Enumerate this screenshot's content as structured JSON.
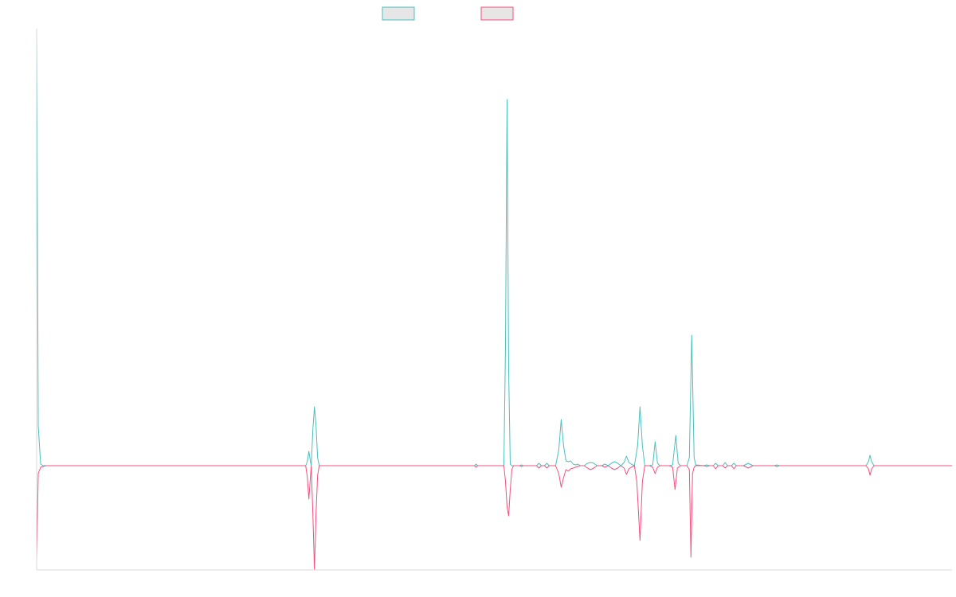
{
  "chart_data": {
    "type": "line",
    "title": "",
    "xlabel": "",
    "ylabel": "",
    "xlim": [
      0,
      1150
    ],
    "ylim": [
      -131,
      549
    ],
    "baseline": 0,
    "grid": false,
    "legend": {
      "placement": "top-center",
      "show_text": false
    },
    "series": [
      {
        "color": "#4bbfbd",
        "legend_fill": "#e6e6e6",
        "points": [
          [
            0,
            549
          ],
          [
            2,
            50
          ],
          [
            5,
            2
          ],
          [
            8,
            0
          ],
          [
            338,
            0
          ],
          [
            340,
            5
          ],
          [
            342,
            18
          ],
          [
            344,
            5
          ],
          [
            345,
            0
          ],
          [
            347,
            45
          ],
          [
            349,
            74
          ],
          [
            351,
            50
          ],
          [
            353,
            10
          ],
          [
            355,
            0
          ],
          [
            550,
            0
          ],
          [
            552,
            2
          ],
          [
            554,
            0
          ],
          [
            587,
            0
          ],
          [
            589,
            150
          ],
          [
            591,
            460
          ],
          [
            593,
            120
          ],
          [
            595,
            2
          ],
          [
            597,
            0
          ],
          [
            607,
            0
          ],
          [
            609,
            1
          ],
          [
            611,
            0
          ],
          [
            628,
            0
          ],
          [
            631,
            3
          ],
          [
            634,
            0
          ],
          [
            638,
            0
          ],
          [
            641,
            3
          ],
          [
            644,
            0
          ],
          [
            652,
            0
          ],
          [
            656,
            20
          ],
          [
            659,
            58
          ],
          [
            662,
            25
          ],
          [
            665,
            6
          ],
          [
            668,
            5
          ],
          [
            671,
            6
          ],
          [
            674,
            2
          ],
          [
            677,
            1
          ],
          [
            680,
            2
          ],
          [
            683,
            0
          ],
          [
            688,
            0
          ],
          [
            692,
            3
          ],
          [
            696,
            4
          ],
          [
            700,
            3
          ],
          [
            704,
            0
          ],
          [
            710,
            0
          ],
          [
            714,
            2
          ],
          [
            718,
            0
          ],
          [
            722,
            3
          ],
          [
            726,
            5
          ],
          [
            730,
            3
          ],
          [
            734,
            0
          ],
          [
            738,
            4
          ],
          [
            741,
            12
          ],
          [
            744,
            4
          ],
          [
            747,
            2
          ],
          [
            751,
            0
          ],
          [
            755,
            25
          ],
          [
            758,
            74
          ],
          [
            761,
            25
          ],
          [
            764,
            0
          ],
          [
            770,
            0
          ],
          [
            774,
            1
          ],
          [
            777,
            30
          ],
          [
            780,
            3
          ],
          [
            783,
            0
          ],
          [
            795,
            0
          ],
          [
            799,
            1
          ],
          [
            803,
            38
          ],
          [
            806,
            3
          ],
          [
            809,
            0
          ],
          [
            817,
            0
          ],
          [
            820,
            10
          ],
          [
            823,
            164
          ],
          [
            826,
            10
          ],
          [
            828,
            1
          ],
          [
            838,
            0
          ],
          [
            842,
            1
          ],
          [
            845,
            0
          ],
          [
            850,
            0
          ],
          [
            853,
            3
          ],
          [
            856,
            0
          ],
          [
            862,
            0
          ],
          [
            865,
            4
          ],
          [
            868,
            0
          ],
          [
            873,
            0
          ],
          [
            876,
            3
          ],
          [
            879,
            0
          ],
          [
            888,
            0
          ],
          [
            894,
            3
          ],
          [
            900,
            0
          ],
          [
            927,
            0
          ],
          [
            930,
            1
          ],
          [
            933,
            0
          ],
          [
            1042,
            0
          ],
          [
            1045,
            5
          ],
          [
            1047,
            13
          ],
          [
            1049,
            5
          ],
          [
            1052,
            0
          ],
          [
            1150,
            0
          ]
        ]
      },
      {
        "color": "#f5507e",
        "legend_fill": "#e6e6e6",
        "points": [
          [
            0,
            -117
          ],
          [
            2,
            -10
          ],
          [
            5,
            -2
          ],
          [
            8,
            -1
          ],
          [
            12,
            0
          ],
          [
            338,
            0
          ],
          [
            340,
            -14
          ],
          [
            342,
            -42
          ],
          [
            344,
            -14
          ],
          [
            345,
            0
          ],
          [
            347,
            -60
          ],
          [
            349,
            -131
          ],
          [
            351,
            -60
          ],
          [
            353,
            -12
          ],
          [
            355,
            0
          ],
          [
            550,
            0
          ],
          [
            552,
            -2
          ],
          [
            554,
            0
          ],
          [
            587,
            0
          ],
          [
            589,
            -20
          ],
          [
            591,
            -52
          ],
          [
            593,
            -63
          ],
          [
            595,
            -30
          ],
          [
            597,
            -5
          ],
          [
            599,
            0
          ],
          [
            607,
            0
          ],
          [
            609,
            -1
          ],
          [
            611,
            0
          ],
          [
            628,
            0
          ],
          [
            631,
            -3
          ],
          [
            634,
            0
          ],
          [
            638,
            0
          ],
          [
            641,
            -3
          ],
          [
            644,
            0
          ],
          [
            652,
            0
          ],
          [
            656,
            -10
          ],
          [
            659,
            -27
          ],
          [
            662,
            -15
          ],
          [
            665,
            -5
          ],
          [
            668,
            -7
          ],
          [
            671,
            -4
          ],
          [
            674,
            -3
          ],
          [
            677,
            -2
          ],
          [
            680,
            -1
          ],
          [
            683,
            0
          ],
          [
            688,
            0
          ],
          [
            692,
            -3
          ],
          [
            696,
            -5
          ],
          [
            700,
            -3
          ],
          [
            704,
            0
          ],
          [
            710,
            0
          ],
          [
            714,
            -2
          ],
          [
            718,
            0
          ],
          [
            722,
            -3
          ],
          [
            726,
            -5
          ],
          [
            730,
            -3
          ],
          [
            734,
            0
          ],
          [
            738,
            -3
          ],
          [
            741,
            -11
          ],
          [
            744,
            -4
          ],
          [
            747,
            -2
          ],
          [
            751,
            0
          ],
          [
            754,
            -20
          ],
          [
            758,
            -94
          ],
          [
            761,
            -20
          ],
          [
            764,
            0
          ],
          [
            770,
            0
          ],
          [
            774,
            -2
          ],
          [
            777,
            -10
          ],
          [
            780,
            -2
          ],
          [
            783,
            0
          ],
          [
            795,
            0
          ],
          [
            799,
            -2
          ],
          [
            802,
            -30
          ],
          [
            805,
            -3
          ],
          [
            809,
            0
          ],
          [
            817,
            0
          ],
          [
            820,
            -5
          ],
          [
            822,
            -115
          ],
          [
            824,
            -10
          ],
          [
            826,
            -2
          ],
          [
            828,
            0
          ],
          [
            838,
            0
          ],
          [
            842,
            -1
          ],
          [
            845,
            0
          ],
          [
            850,
            0
          ],
          [
            853,
            -4
          ],
          [
            856,
            0
          ],
          [
            862,
            0
          ],
          [
            865,
            -3
          ],
          [
            868,
            0
          ],
          [
            873,
            0
          ],
          [
            876,
            -4
          ],
          [
            879,
            0
          ],
          [
            888,
            0
          ],
          [
            894,
            -3
          ],
          [
            900,
            0
          ],
          [
            927,
            0
          ],
          [
            930,
            -1
          ],
          [
            933,
            0
          ],
          [
            1042,
            0
          ],
          [
            1045,
            -4
          ],
          [
            1047,
            -12
          ],
          [
            1049,
            -4
          ],
          [
            1052,
            0
          ],
          [
            1150,
            0
          ]
        ]
      }
    ]
  }
}
